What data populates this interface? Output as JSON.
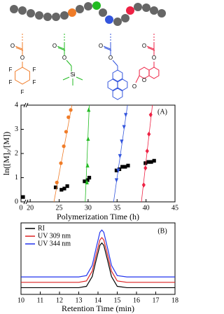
{
  "diagram": {
    "structures": [
      {
        "color": "#f07c28",
        "labels": [
          "O",
          "O",
          "F",
          "F",
          "F",
          "F",
          "F"
        ]
      },
      {
        "color": "#22bb22",
        "labels": [
          "O",
          "O",
          "Si"
        ]
      },
      {
        "color": "#3355dd",
        "labels": [
          "O",
          "O"
        ]
      },
      {
        "color": "#ee2244",
        "labels": [
          "O",
          "O",
          "O",
          "O"
        ]
      }
    ]
  },
  "chart_data": [
    {
      "type": "scatter",
      "xlabel": "Polymerization Time (h)",
      "ylabel": "ln([M]₀/[M])",
      "annotation": "(A)",
      "xlim": [
        0,
        45
      ],
      "xbreak": [
        0.5,
        19.5
      ],
      "xticks": [
        0,
        20,
        25,
        30,
        35,
        40,
        45
      ],
      "ylim": [
        0,
        4
      ],
      "yticks": [
        0,
        1,
        2,
        3,
        4
      ],
      "series": [
        {
          "color": "#000000",
          "marker": "square",
          "x": [
            0.3,
            24.4,
            25.4,
            25.9,
            26.4,
            29.4,
            29.9,
            30.2,
            34.9,
            35.4,
            35.9,
            36.4,
            36.9,
            39.9,
            40.4,
            40.9,
            41.4
          ],
          "values": [
            0.2,
            0.6,
            0.5,
            0.55,
            0.65,
            0.85,
            0.9,
            1.0,
            1.3,
            1.35,
            1.45,
            1.45,
            1.5,
            1.6,
            1.65,
            1.65,
            1.7
          ]
        },
        {
          "color": "#f07c28",
          "marker": "circle",
          "x": [
            24.6,
            25.3,
            25.8,
            26.2,
            26.6,
            27.0
          ],
          "values": [
            0.8,
            1.6,
            2.3,
            2.9,
            3.5,
            3.8
          ],
          "fit_x": [
            24.1,
            27.2
          ],
          "fit_y": [
            0,
            4
          ]
        },
        {
          "color": "#22bb22",
          "marker": "triangle-up",
          "x": [
            29.8,
            29.9,
            30.0,
            30.1
          ],
          "values": [
            0.8,
            1.5,
            2.6,
            3.8
          ],
          "fit_x": [
            29.5,
            30.2
          ],
          "fit_y": [
            0,
            4
          ]
        },
        {
          "color": "#3355dd",
          "marker": "triangle-down",
          "x": [
            34.9,
            35.2,
            35.5,
            35.8,
            36.2,
            36.5
          ],
          "values": [
            0.9,
            1.3,
            1.9,
            2.5,
            3.1,
            3.6
          ],
          "fit_x": [
            34.4,
            36.8
          ],
          "fit_y": [
            0,
            4
          ]
        },
        {
          "color": "#ee2244",
          "marker": "diamond",
          "x": [
            39.6,
            39.9,
            40.2,
            40.5,
            40.8
          ],
          "values": [
            0.7,
            1.4,
            2.1,
            2.8,
            3.6
          ],
          "fit_x": [
            39.2,
            41.1
          ],
          "fit_y": [
            0,
            4
          ]
        }
      ]
    },
    {
      "type": "line",
      "xlabel": "Retention Time (min)",
      "annotation": "(B)",
      "xlim": [
        10,
        18
      ],
      "xticks": [
        10,
        11,
        12,
        13,
        14,
        15,
        16,
        17,
        18
      ],
      "ylim": [
        -0.15,
        1.45
      ],
      "x": [
        10,
        11,
        12,
        13,
        13.4,
        13.7,
        13.9,
        14.1,
        14.2,
        14.3,
        14.5,
        14.7,
        15,
        15.5,
        16,
        17,
        18
      ],
      "series": [
        {
          "name": "RI",
          "color": "#000000",
          "values": [
            0,
            0,
            0,
            0,
            0.03,
            0.25,
            0.61,
            0.95,
            1,
            0.95,
            0.61,
            0.25,
            0.03,
            0,
            0,
            0,
            0
          ]
        },
        {
          "name": "UV 309 nm",
          "color": "#dd2222",
          "values": [
            0.12,
            0.12,
            0.12,
            0.12,
            0.15,
            0.37,
            0.73,
            1.07,
            1.12,
            1.07,
            0.73,
            0.37,
            0.15,
            0.12,
            0.12,
            0.12,
            0.12
          ]
        },
        {
          "name": "UV 344 nm",
          "color": "#2233ee",
          "values": [
            0.24,
            0.24,
            0.24,
            0.24,
            0.27,
            0.5,
            0.88,
            1.24,
            1.29,
            1.24,
            0.88,
            0.5,
            0.27,
            0.24,
            0.24,
            0.24,
            0.24
          ]
        }
      ]
    }
  ]
}
